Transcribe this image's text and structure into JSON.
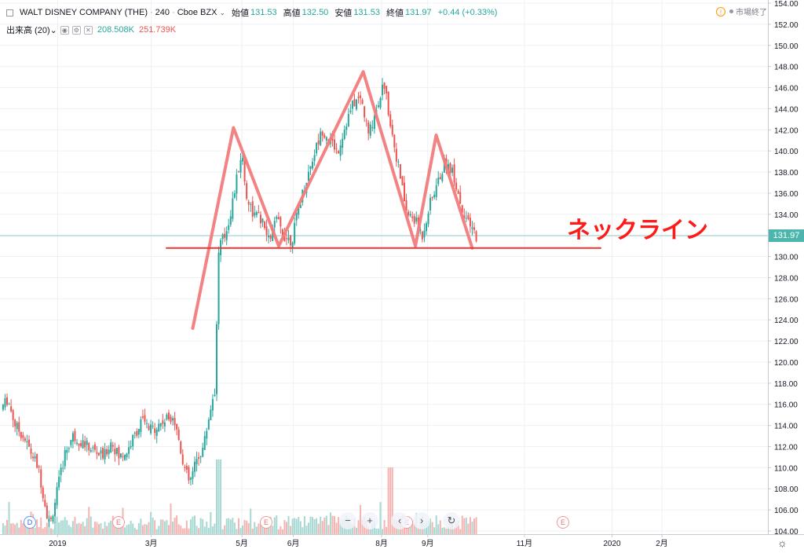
{
  "legend": {
    "symbol": "WALT DISNEY COMPANY (THE)",
    "interval": "240",
    "exchange": "Cboe BZX",
    "open_label": "始値",
    "open": "131.53",
    "high_label": "高値",
    "high": "132.50",
    "low_label": "安値",
    "low": "131.53",
    "close_label": "終値",
    "close": "131.97",
    "change": "+0.44 (+0.33%)",
    "market_status": "市場終了"
  },
  "volume_legend": {
    "label": "出来高 (20)",
    "value1": "208.508K",
    "value2": "251.739K"
  },
  "price_tag": "131.97",
  "annotation": {
    "text": "ネックライン"
  },
  "events": {
    "dividend": "D",
    "earnings": "E"
  },
  "nav": {
    "zoom_out": "−",
    "zoom_in": "+",
    "scroll_left": "‹",
    "scroll_right": "›",
    "reset": "↻"
  },
  "settings": "☼",
  "colors": {
    "up": "#26a69a",
    "down": "#ef5350",
    "pattern": "#f27b7b",
    "neckline": "#e53935",
    "grid": "#eef0f4"
  },
  "chart_data": {
    "type": "candlestick",
    "ylim": [
      104,
      154
    ],
    "y_ticks": [
      "104.00",
      "106.00",
      "108.00",
      "110.00",
      "112.00",
      "114.00",
      "116.00",
      "118.00",
      "120.00",
      "122.00",
      "124.00",
      "126.00",
      "128.00",
      "130.00",
      "132.00",
      "134.00",
      "136.00",
      "138.00",
      "140.00",
      "142.00",
      "144.00",
      "146.00",
      "148.00",
      "150.00",
      "152.00",
      "154.00"
    ],
    "x_ticks": [
      "2019",
      "3月",
      "5月",
      "6月",
      "8月",
      "9月",
      "11月",
      "2020",
      "2月"
    ],
    "x_tick_pos": [
      0.075,
      0.197,
      0.315,
      0.382,
      0.497,
      0.557,
      0.683,
      0.797,
      0.862
    ],
    "price_path": [
      [
        0.0,
        115.5
      ],
      [
        0.01,
        116.5
      ],
      [
        0.02,
        114.0
      ],
      [
        0.03,
        113.0
      ],
      [
        0.04,
        111.5
      ],
      [
        0.05,
        110.0
      ],
      [
        0.06,
        106.0
      ],
      [
        0.065,
        104.5
      ],
      [
        0.075,
        108.0
      ],
      [
        0.085,
        111.5
      ],
      [
        0.095,
        113.0
      ],
      [
        0.105,
        112.5
      ],
      [
        0.115,
        112.0
      ],
      [
        0.125,
        111.5
      ],
      [
        0.135,
        111.0
      ],
      [
        0.145,
        112.5
      ],
      [
        0.155,
        111.0
      ],
      [
        0.165,
        111.5
      ],
      [
        0.175,
        113.0
      ],
      [
        0.185,
        114.5
      ],
      [
        0.195,
        113.5
      ],
      [
        0.205,
        114.0
      ],
      [
        0.215,
        114.5
      ],
      [
        0.225,
        115.0
      ],
      [
        0.232,
        113.0
      ],
      [
        0.24,
        110.0
      ],
      [
        0.247,
        108.5
      ],
      [
        0.255,
        110.5
      ],
      [
        0.265,
        112.0
      ],
      [
        0.275,
        116.0
      ],
      [
        0.28,
        117.5
      ],
      [
        0.285,
        131.0
      ],
      [
        0.293,
        132.0
      ],
      [
        0.3,
        134.0
      ],
      [
        0.31,
        138.0
      ],
      [
        0.315,
        140.0
      ],
      [
        0.32,
        136.0
      ],
      [
        0.33,
        134.0
      ],
      [
        0.34,
        133.5
      ],
      [
        0.35,
        131.5
      ],
      [
        0.36,
        133.5
      ],
      [
        0.37,
        132.0
      ],
      [
        0.38,
        131.5
      ],
      [
        0.39,
        135.0
      ],
      [
        0.4,
        137.5
      ],
      [
        0.41,
        140.0
      ],
      [
        0.42,
        142.0
      ],
      [
        0.43,
        141.0
      ],
      [
        0.44,
        140.0
      ],
      [
        0.45,
        142.5
      ],
      [
        0.46,
        144.5
      ],
      [
        0.47,
        145.0
      ],
      [
        0.48,
        141.5
      ],
      [
        0.49,
        144.0
      ],
      [
        0.5,
        146.5
      ],
      [
        0.51,
        142.0
      ],
      [
        0.52,
        138.0
      ],
      [
        0.53,
        134.0
      ],
      [
        0.54,
        133.5
      ],
      [
        0.55,
        132.0
      ],
      [
        0.56,
        135.0
      ],
      [
        0.57,
        137.0
      ],
      [
        0.58,
        139.0
      ],
      [
        0.59,
        138.0
      ],
      [
        0.6,
        135.0
      ],
      [
        0.61,
        133.0
      ],
      [
        0.62,
        132.0
      ]
    ],
    "head_shoulders": [
      [
        0.251,
        123.2
      ],
      [
        0.304,
        142.2
      ],
      [
        0.363,
        131.0
      ],
      [
        0.473,
        147.5
      ],
      [
        0.541,
        131.0
      ],
      [
        0.568,
        141.5
      ],
      [
        0.615,
        130.8
      ]
    ],
    "neckline": {
      "value": 130.8,
      "x_start": 0.216,
      "x_end": 0.783
    }
  }
}
